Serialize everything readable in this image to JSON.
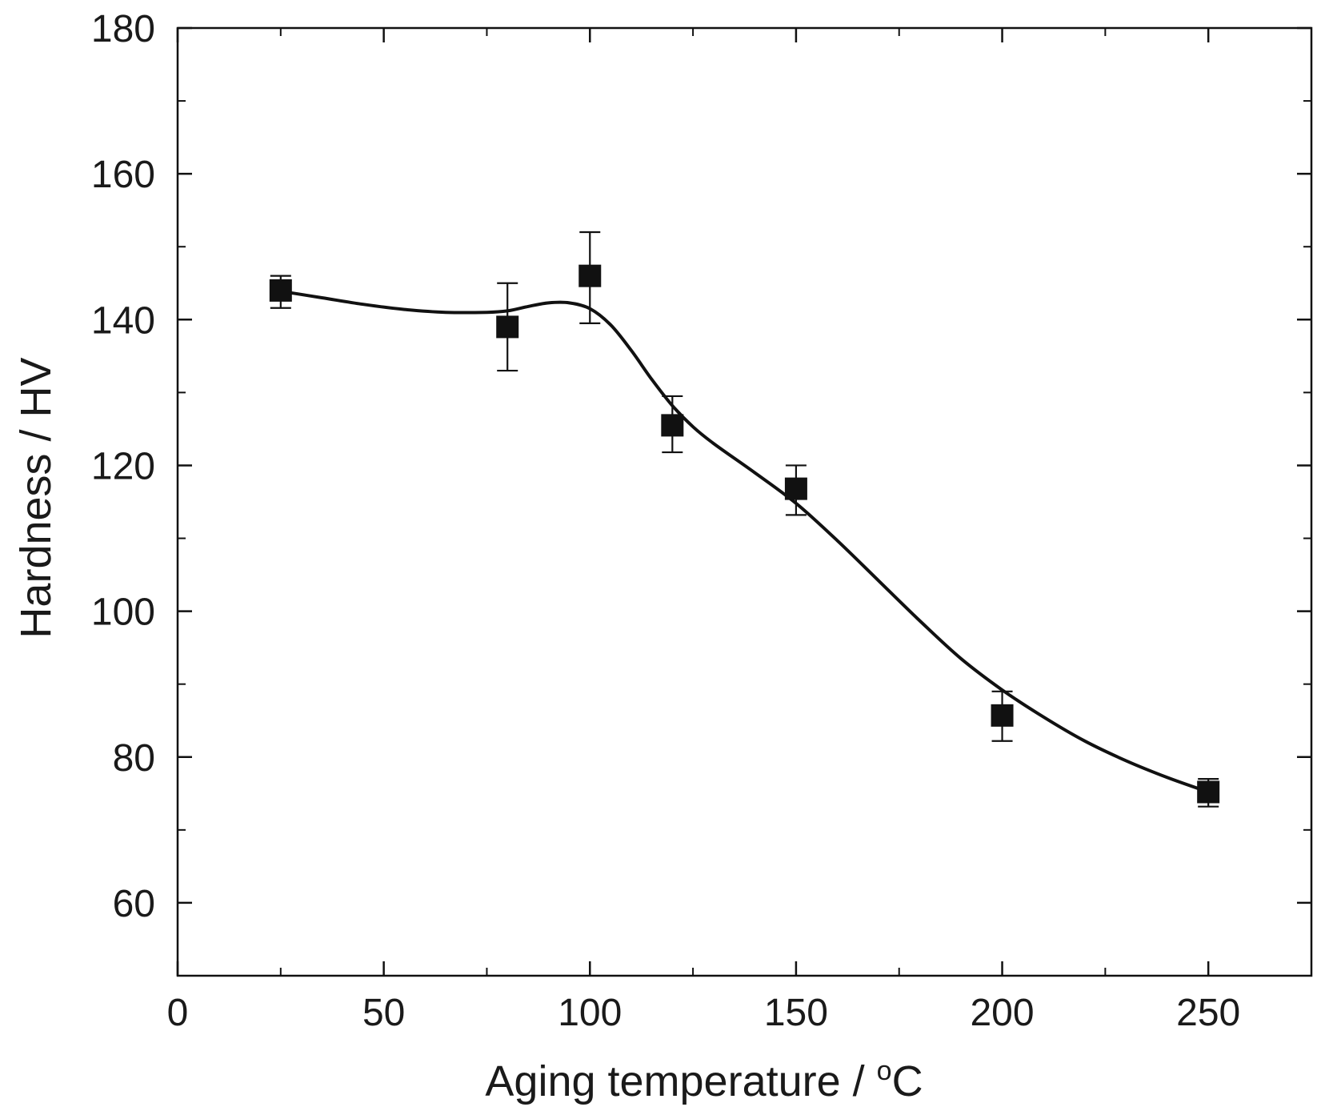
{
  "chart_data": {
    "type": "scatter",
    "title": "",
    "xlabel": "Aging temperature / °C",
    "xlabel_main": "Aging temperature / ",
    "xlabel_degree": "o",
    "xlabel_unit": "C",
    "ylabel": "Hardness / HV",
    "xlim": [
      0,
      275
    ],
    "ylim": [
      50,
      180
    ],
    "x_ticks": [
      0,
      50,
      100,
      150,
      200,
      250
    ],
    "y_ticks": [
      60,
      80,
      100,
      120,
      140,
      160,
      180
    ],
    "x_tick_labels": [
      "0",
      "50",
      "100",
      "150",
      "200",
      "250"
    ],
    "y_tick_labels": [
      "60",
      "80",
      "100",
      "120",
      "140",
      "160",
      "180"
    ],
    "x_minor_ticks": [
      25,
      75,
      125,
      175,
      225
    ],
    "y_minor_ticks": [
      70,
      90,
      110,
      130,
      150,
      170
    ],
    "grid": false,
    "legend": "none",
    "colors": {
      "marker": "#111111",
      "line": "#111111",
      "axes": "#111111"
    },
    "series": [
      {
        "marker": "square",
        "points": [
          {
            "x": 25,
            "y": 144,
            "err_low": 2.4,
            "err_high": 2.0
          },
          {
            "x": 80,
            "y": 139,
            "err_low": 6.0,
            "err_high": 6.0
          },
          {
            "x": 100,
            "y": 146,
            "err_low": 6.5,
            "err_high": 6.0
          },
          {
            "x": 120,
            "y": 125.5,
            "err_low": 3.7,
            "err_high": 4.0
          },
          {
            "x": 150,
            "y": 116.8,
            "err_low": 3.6,
            "err_high": 3.2
          },
          {
            "x": 200,
            "y": 85.7,
            "err_low": 3.5,
            "err_high": 3.3
          },
          {
            "x": 250,
            "y": 75.2,
            "err_low": 2.0,
            "err_high": 1.8
          }
        ]
      }
    ],
    "fit_curve": {
      "x": [
        25,
        35,
        45,
        55,
        65,
        75,
        80,
        85,
        90,
        95,
        100,
        105,
        110,
        115,
        120,
        125,
        130,
        140,
        150,
        160,
        170,
        180,
        190,
        200,
        210,
        220,
        230,
        240,
        250
      ],
      "y": [
        143.9,
        143.0,
        142.1,
        141.4,
        141.0,
        141.0,
        141.2,
        141.8,
        142.3,
        142.3,
        141.5,
        139.3,
        135.8,
        131.8,
        128.2,
        125.3,
        123.0,
        119.0,
        114.8,
        109.7,
        104.2,
        98.7,
        93.5,
        89.2,
        85.5,
        82.2,
        79.5,
        77.2,
        75.2
      ]
    }
  }
}
